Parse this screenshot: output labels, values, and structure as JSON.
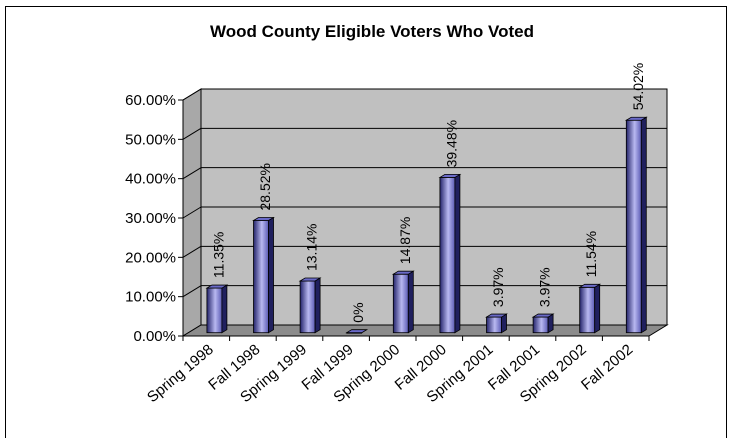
{
  "chart_data": {
    "type": "bar",
    "title": "Wood County Eligible Voters Who Voted",
    "categories": [
      "Spring 1998",
      "Fall 1998",
      "Spring 1999",
      "Fall 1999",
      "Spring 2000",
      "Fall 2000",
      "Spring 2001",
      "Fall 2001",
      "Spring 2002",
      "Fall 2002"
    ],
    "values": [
      11.35,
      28.52,
      13.14,
      0,
      14.87,
      39.48,
      3.97,
      3.97,
      11.54,
      54.02
    ],
    "data_labels": [
      "11.35%",
      "28.52%",
      "13.14%",
      "0%",
      "14.87%",
      "39.48%",
      "3.97%",
      "3.97%",
      "11.54%",
      "54.02%"
    ],
    "y_ticks": [
      "0.00%",
      "10.00%",
      "20.00%",
      "30.00%",
      "40.00%",
      "50.00%",
      "60.00%"
    ],
    "ylim": [
      0,
      60
    ],
    "grid": true,
    "style": "3d-column",
    "colors": {
      "bar_front_dark": "#23236a",
      "bar_front_light": "#b8b8f0",
      "bar_side": "#20205e",
      "bar_top": "#6a6ac8",
      "wall": "#c0c0c0",
      "floor": "#8c8c8c"
    }
  }
}
